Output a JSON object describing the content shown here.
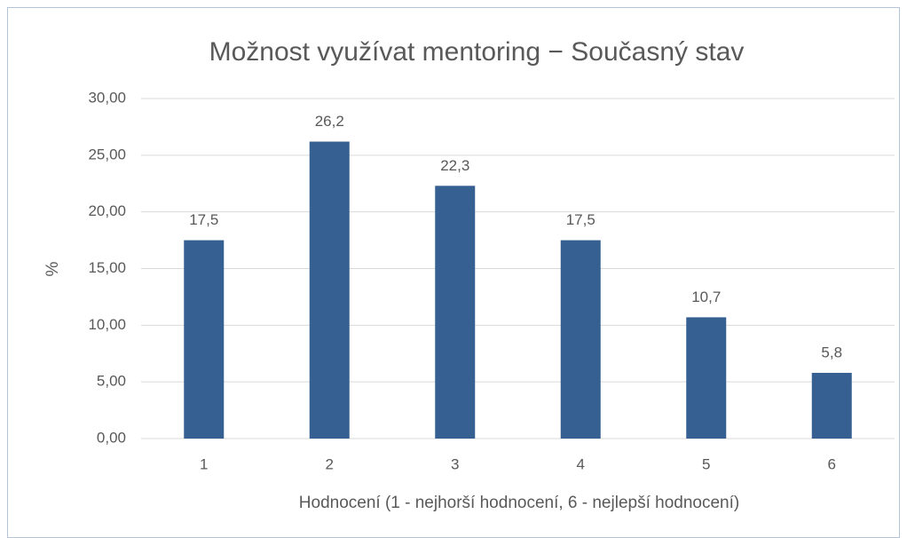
{
  "chart_data": {
    "type": "bar",
    "title": "Možnost využívat mentoring − Současný stav",
    "x_label": "Hodnocení (1 - nejhorší hodnocení, 6 - nejlepší hodnocení)",
    "y_label": "%",
    "categories": [
      "1",
      "2",
      "3",
      "4",
      "5",
      "6"
    ],
    "values": [
      17.5,
      26.2,
      22.3,
      17.5,
      10.7,
      5.8
    ],
    "value_labels": [
      "17,5",
      "26,2",
      "22,3",
      "17,5",
      "10,7",
      "5,8"
    ],
    "color": "#376092",
    "ylim": [
      0,
      30
    ],
    "yticks": [
      {
        "value": 0,
        "label": "0,00"
      },
      {
        "value": 5,
        "label": "5,00"
      },
      {
        "value": 10,
        "label": "10,00"
      },
      {
        "value": 15,
        "label": "15,00"
      },
      {
        "value": 20,
        "label": "20,00"
      },
      {
        "value": 25,
        "label": "25,00"
      },
      {
        "value": 30,
        "label": "30,00"
      }
    ],
    "grid": true
  }
}
